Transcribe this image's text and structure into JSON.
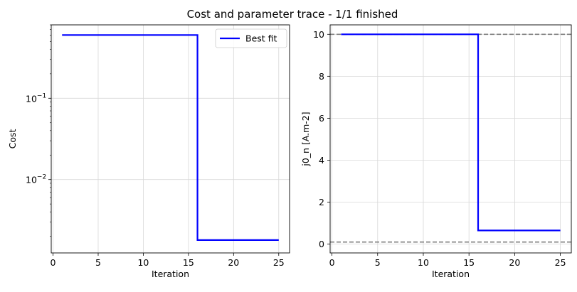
{
  "figure": {
    "title": "Cost and parameter trace - 1/1 finished"
  },
  "chart_data": [
    {
      "type": "line",
      "name": "cost-panel",
      "xlabel": "Iteration",
      "ylabel": "Cost",
      "yscale": "log",
      "xlim": [
        -0.2,
        26.2
      ],
      "ylim": [
        0.00125,
        0.8
      ],
      "xticks": [
        0,
        5,
        10,
        15,
        20,
        25
      ],
      "yticks_major": [
        {
          "value": 0.01,
          "base": "10",
          "exp": "−2"
        },
        {
          "value": 0.1,
          "base": "10",
          "exp": "−1"
        }
      ],
      "grid": true,
      "legend": {
        "position": "top-right",
        "entries": [
          "Best fit"
        ]
      },
      "series": [
        {
          "name": "Best fit",
          "color": "#0000ff",
          "step": "post",
          "x": [
            1,
            16,
            25
          ],
          "y": [
            0.6,
            0.0018,
            0.0018
          ]
        }
      ]
    },
    {
      "type": "line",
      "name": "parameter-panel",
      "xlabel": "Iteration",
      "ylabel": "j0_n [A.m-2]",
      "yscale": "linear",
      "xlim": [
        -0.2,
        26.2
      ],
      "ylim": [
        -0.42,
        10.45
      ],
      "xticks": [
        0,
        5,
        10,
        15,
        20,
        25
      ],
      "yticks": [
        0,
        2,
        4,
        6,
        8,
        10
      ],
      "grid": true,
      "hlines": [
        {
          "value": 10,
          "color": "#808080",
          "style": "dashed"
        },
        {
          "value": 0.1,
          "color": "#808080",
          "style": "dashed"
        }
      ],
      "series": [
        {
          "color": "#0000ff",
          "step": "post",
          "x": [
            1,
            16,
            25
          ],
          "y": [
            10,
            0.65,
            0.65
          ]
        }
      ]
    }
  ]
}
